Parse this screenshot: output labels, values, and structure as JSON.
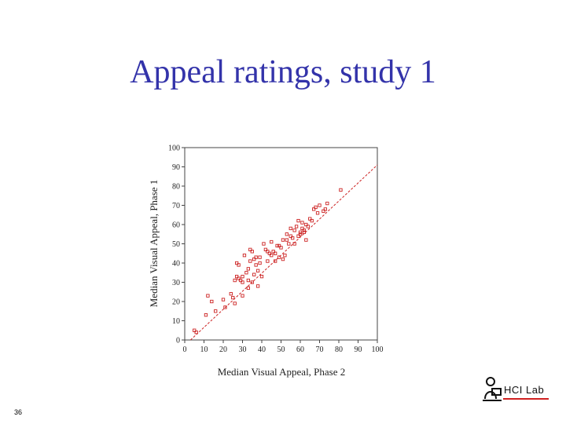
{
  "slide": {
    "title": "Appeal ratings, study 1",
    "number": "36",
    "logo_text": "HCI Lab",
    "logo_icon": "person-at-computer-icon"
  },
  "colors": {
    "title": "#3333aa",
    "marker": "#cc2222",
    "fit_line": "#cc2222",
    "logo_accent": "#d02020"
  },
  "chart_data": {
    "type": "scatter",
    "title": "",
    "xlabel": "Median Visual Appeal, Phase 2",
    "ylabel": "Median Visual Appeal, Phase 1",
    "xlim": [
      0,
      100
    ],
    "ylim": [
      0,
      100
    ],
    "xticks": [
      0,
      10,
      20,
      30,
      40,
      50,
      60,
      70,
      80,
      90,
      100
    ],
    "yticks": [
      0,
      10,
      20,
      30,
      40,
      50,
      60,
      70,
      80,
      90,
      100
    ],
    "grid": false,
    "marker": "open-square",
    "fit_line": {
      "style": "dashed",
      "from": [
        3,
        0
      ],
      "to": [
        100,
        91
      ]
    },
    "points": [
      [
        5,
        5
      ],
      [
        6,
        4
      ],
      [
        11,
        13
      ],
      [
        12,
        23
      ],
      [
        14,
        20
      ],
      [
        16,
        15
      ],
      [
        20,
        21
      ],
      [
        21,
        17
      ],
      [
        24,
        24
      ],
      [
        25,
        22
      ],
      [
        26,
        31
      ],
      [
        26,
        19
      ],
      [
        27,
        33
      ],
      [
        27,
        40
      ],
      [
        28,
        39
      ],
      [
        28,
        32
      ],
      [
        29,
        31
      ],
      [
        30,
        30
      ],
      [
        30,
        33
      ],
      [
        30,
        23
      ],
      [
        31,
        44
      ],
      [
        32,
        35
      ],
      [
        33,
        27
      ],
      [
        33,
        31
      ],
      [
        33,
        37
      ],
      [
        34,
        41
      ],
      [
        34,
        47
      ],
      [
        35,
        46
      ],
      [
        35,
        30
      ],
      [
        36,
        42
      ],
      [
        36,
        34
      ],
      [
        37,
        43
      ],
      [
        37,
        39
      ],
      [
        38,
        28
      ],
      [
        38,
        36
      ],
      [
        39,
        40
      ],
      [
        39,
        43
      ],
      [
        40,
        33
      ],
      [
        41,
        50
      ],
      [
        42,
        47
      ],
      [
        43,
        41
      ],
      [
        43,
        46
      ],
      [
        44,
        45
      ],
      [
        45,
        51
      ],
      [
        45,
        44
      ],
      [
        46,
        46
      ],
      [
        47,
        45
      ],
      [
        47,
        41
      ],
      [
        48,
        49
      ],
      [
        49,
        43
      ],
      [
        49,
        49
      ],
      [
        50,
        48
      ],
      [
        51,
        42
      ],
      [
        51,
        52
      ],
      [
        52,
        44
      ],
      [
        53,
        52
      ],
      [
        53,
        55
      ],
      [
        54,
        50
      ],
      [
        55,
        58
      ],
      [
        55,
        54
      ],
      [
        56,
        53
      ],
      [
        57,
        57
      ],
      [
        57,
        50
      ],
      [
        58,
        59
      ],
      [
        59,
        54
      ],
      [
        59,
        62
      ],
      [
        60,
        56
      ],
      [
        60,
        55
      ],
      [
        61,
        61
      ],
      [
        61,
        58
      ],
      [
        62,
        56
      ],
      [
        62,
        57
      ],
      [
        63,
        52
      ],
      [
        63,
        60
      ],
      [
        64,
        59
      ],
      [
        65,
        63
      ],
      [
        66,
        62
      ],
      [
        67,
        68
      ],
      [
        68,
        69
      ],
      [
        69,
        66
      ],
      [
        70,
        70
      ],
      [
        72,
        67
      ],
      [
        73,
        68
      ],
      [
        74,
        71
      ],
      [
        81,
        78
      ]
    ]
  }
}
